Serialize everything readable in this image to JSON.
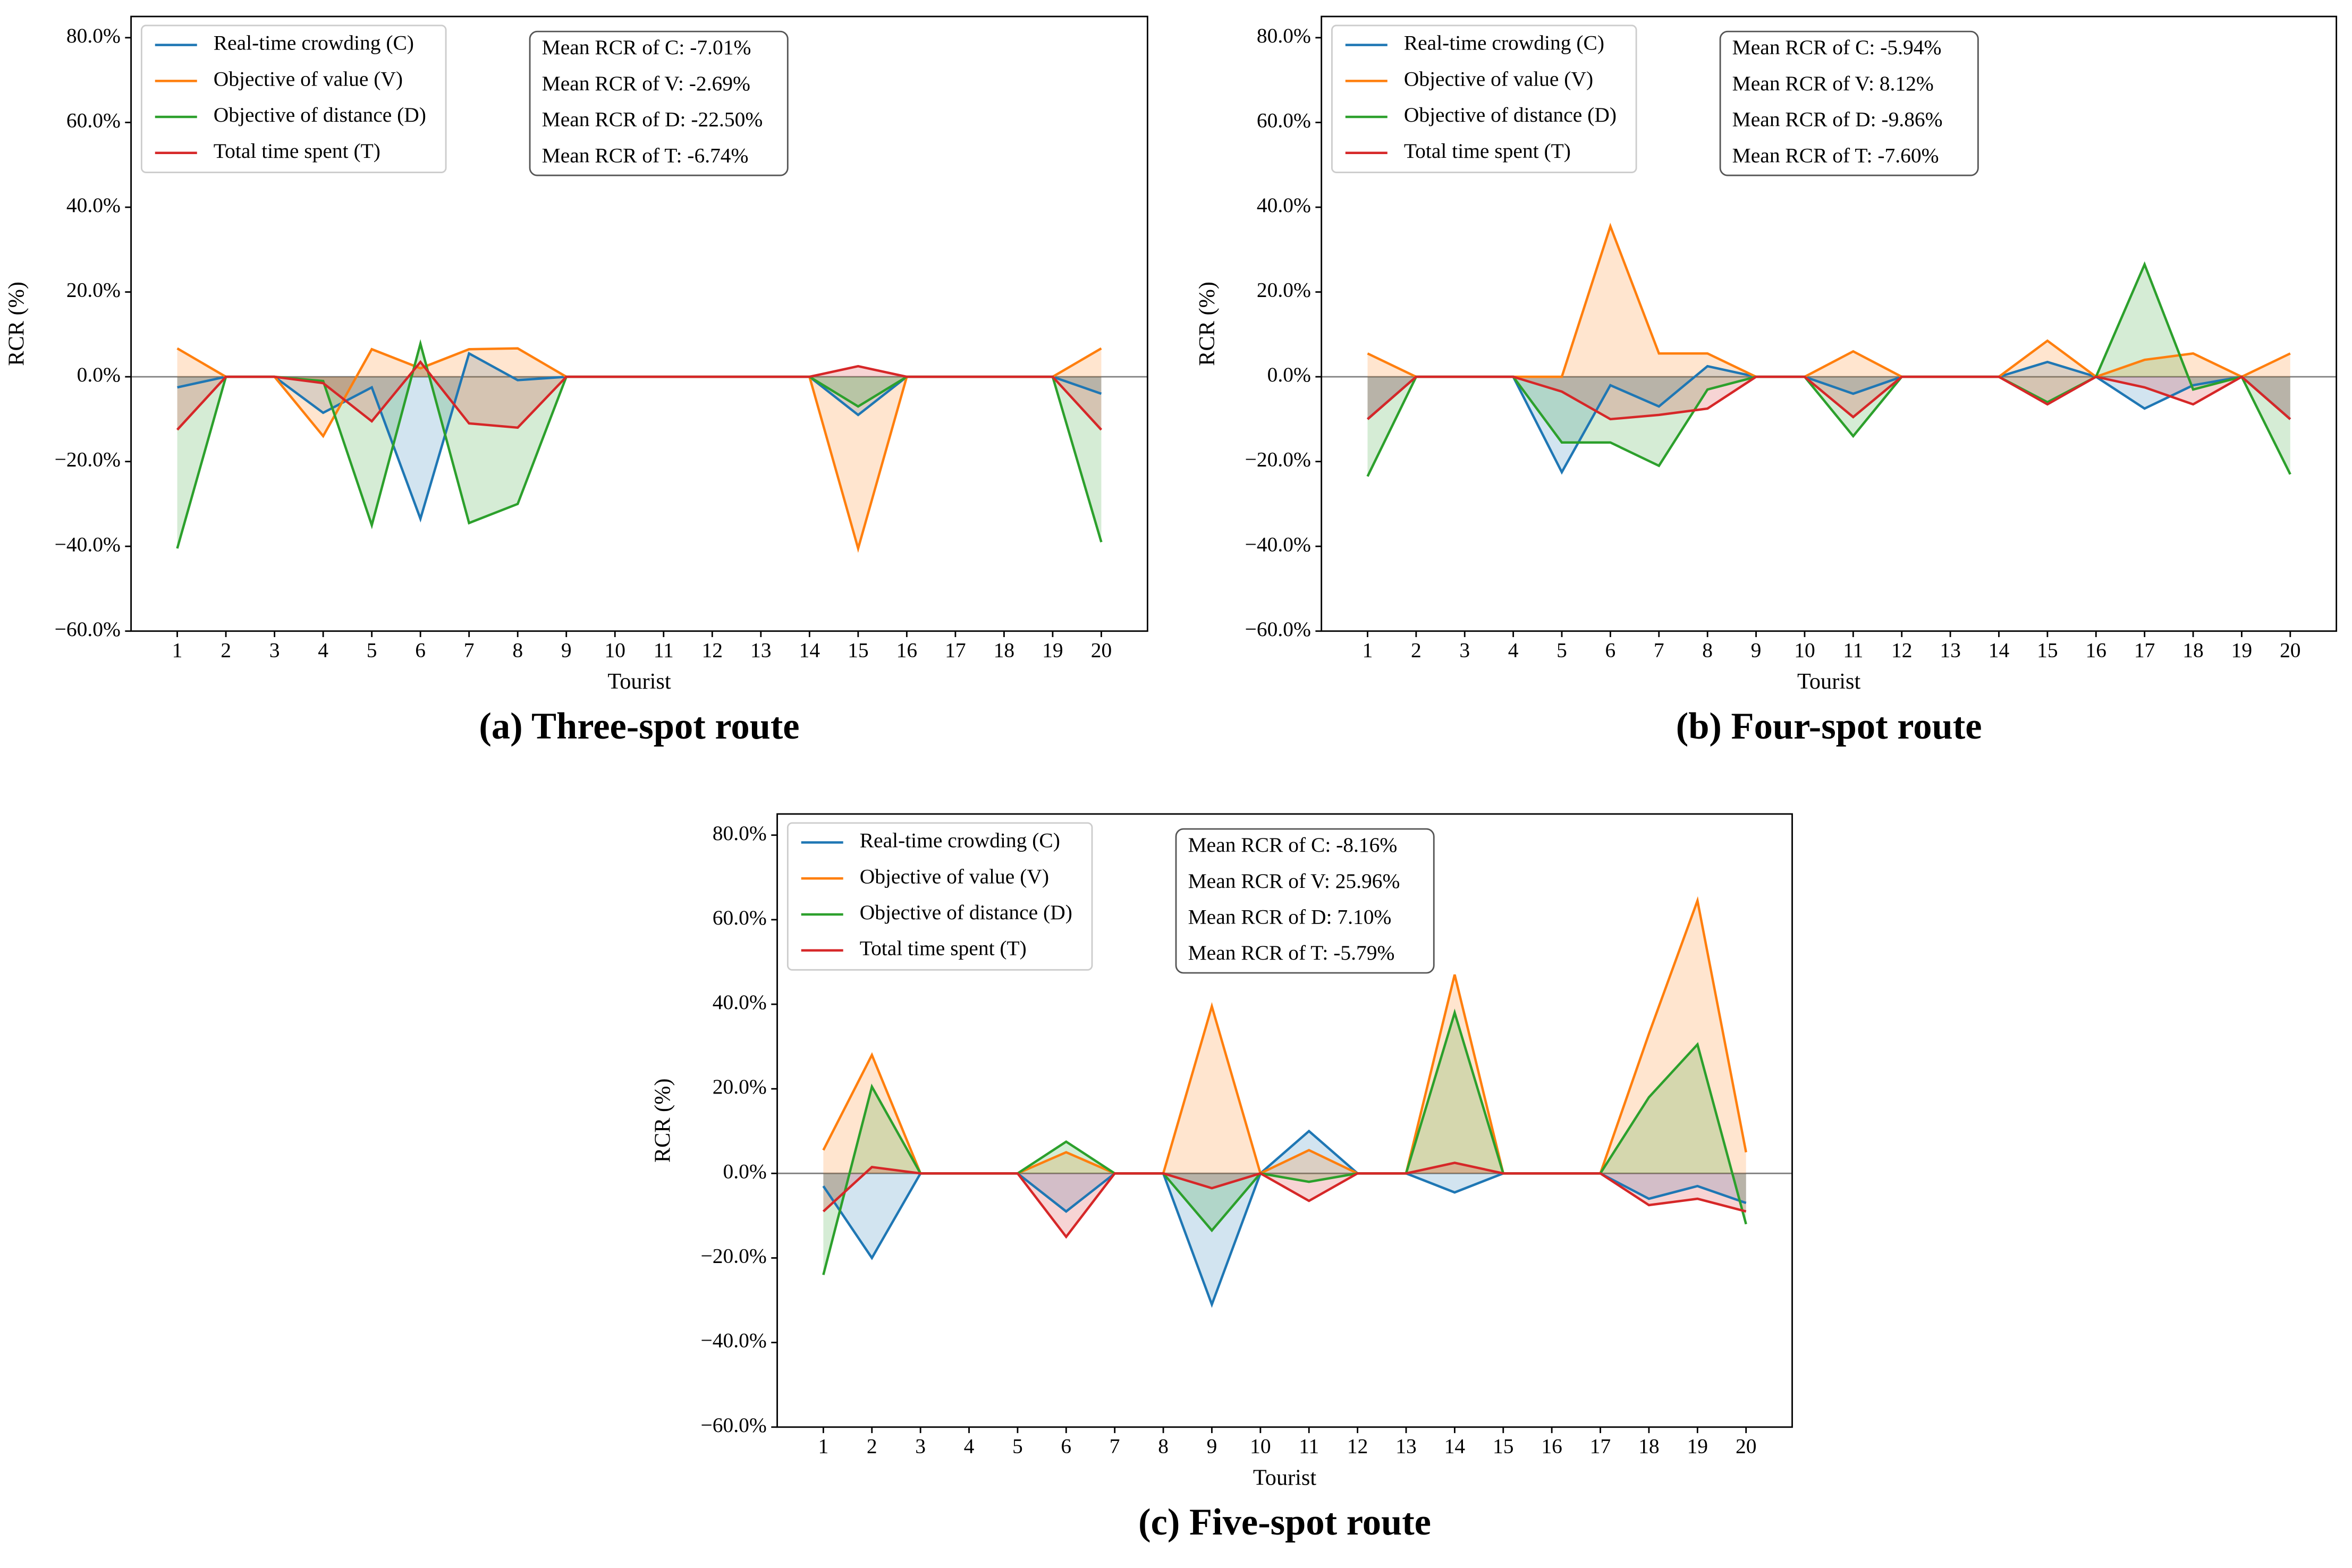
{
  "chart_data": [
    {
      "type": "line",
      "title": "(a) Three-spot route",
      "xlabel": "Tourist",
      "ylabel": "RCR (%)",
      "categories": [
        "1",
        "2",
        "3",
        "4",
        "5",
        "6",
        "7",
        "8",
        "9",
        "10",
        "11",
        "12",
        "13",
        "14",
        "15",
        "16",
        "17",
        "18",
        "19",
        "20"
      ],
      "series": [
        {
          "name": "Real-time crowding (C)",
          "color": "#1f77b4",
          "values": [
            -2.5,
            0,
            0,
            -8.5,
            -2.5,
            -33.5,
            5.5,
            -0.8,
            0,
            0,
            0,
            0,
            0,
            0,
            -9,
            0,
            0,
            0,
            0,
            -4
          ]
        },
        {
          "name": "Objective of value (V)",
          "color": "#ff7f0e",
          "values": [
            6.7,
            0,
            0,
            -14,
            6.5,
            2,
            6.5,
            6.7,
            0,
            0,
            0,
            0,
            0,
            0,
            -40.5,
            0,
            0,
            0,
            0,
            6.7
          ]
        },
        {
          "name": "Objective of distance (D)",
          "color": "#2ca02c",
          "values": [
            -40.5,
            0,
            0,
            -1,
            -35,
            7.8,
            -34.5,
            -30,
            0,
            0,
            0,
            0,
            0,
            0,
            -7,
            0,
            0,
            0,
            0,
            -39
          ]
        },
        {
          "name": "Total time spent (T)",
          "color": "#d62728",
          "values": [
            -12.5,
            0,
            0,
            -1.5,
            -10.5,
            3.5,
            -11,
            -12,
            0,
            0,
            0,
            0,
            0,
            0,
            2.5,
            0,
            0,
            0,
            0,
            -12.5
          ]
        }
      ],
      "annotations": [
        "Mean RCR of C: -7.01%",
        "Mean RCR of V: -2.69%",
        "Mean RCR of D: -22.50%",
        "Mean RCR of T: -6.74%"
      ],
      "ylim": [
        -60,
        85
      ],
      "yticks": [
        {
          "value": -60,
          "label": "−60.0%"
        },
        {
          "value": -40,
          "label": "−40.0%"
        },
        {
          "value": -20,
          "label": "−20.0%"
        },
        {
          "value": 0,
          "label": "0.0%"
        },
        {
          "value": 20,
          "label": "20.0%"
        },
        {
          "value": 40,
          "label": "40.0%"
        },
        {
          "value": 60,
          "label": "60.0%"
        },
        {
          "value": 80,
          "label": "80.0%"
        }
      ],
      "legend": "upper left",
      "fill_to_zero": true
    },
    {
      "type": "line",
      "title": "(b) Four-spot route",
      "xlabel": "Tourist",
      "ylabel": "RCR (%)",
      "categories": [
        "1",
        "2",
        "3",
        "4",
        "5",
        "6",
        "7",
        "8",
        "9",
        "10",
        "11",
        "12",
        "13",
        "14",
        "15",
        "16",
        "17",
        "18",
        "19",
        "20"
      ],
      "series": [
        {
          "name": "Real-time crowding (C)",
          "color": "#1f77b4",
          "values": [
            -10,
            0,
            0,
            0,
            -22.5,
            -2,
            -7,
            2.5,
            0,
            0,
            -4,
            0,
            0,
            0,
            3.5,
            0,
            -7.5,
            -2,
            0,
            -10
          ]
        },
        {
          "name": "Objective of value (V)",
          "color": "#ff7f0e",
          "values": [
            5.5,
            0,
            0,
            0,
            0,
            35.5,
            5.5,
            5.5,
            0,
            0,
            6,
            0,
            0,
            0,
            8.5,
            0,
            4,
            5.5,
            0,
            5.5
          ]
        },
        {
          "name": "Objective of distance (D)",
          "color": "#2ca02c",
          "values": [
            -23.5,
            0,
            0,
            0,
            -15.5,
            -15.5,
            -21,
            -3,
            0,
            0,
            -14,
            0,
            0,
            0,
            -6,
            0,
            26.5,
            -3,
            0,
            -23
          ]
        },
        {
          "name": "Total time spent (T)",
          "color": "#d62728",
          "values": [
            -10,
            0,
            0,
            0,
            -3.5,
            -10,
            -9,
            -7.5,
            0,
            0,
            -9.5,
            0,
            0,
            0,
            -6.5,
            0,
            -2.5,
            -6.5,
            0,
            -10
          ]
        }
      ],
      "annotations": [
        "Mean RCR of C: -5.94%",
        "Mean RCR of V: 8.12%",
        "Mean RCR of D: -9.86%",
        "Mean RCR of T: -7.60%"
      ],
      "ylim": [
        -60,
        85
      ],
      "yticks": [
        {
          "value": -60,
          "label": "−60.0%"
        },
        {
          "value": -40,
          "label": "−40.0%"
        },
        {
          "value": -20,
          "label": "−20.0%"
        },
        {
          "value": 0,
          "label": "0.0%"
        },
        {
          "value": 20,
          "label": "20.0%"
        },
        {
          "value": 40,
          "label": "40.0%"
        },
        {
          "value": 60,
          "label": "60.0%"
        },
        {
          "value": 80,
          "label": "80.0%"
        }
      ],
      "legend": "upper left",
      "fill_to_zero": true
    },
    {
      "type": "line",
      "title": "(c) Five-spot route",
      "xlabel": "Tourist",
      "ylabel": "RCR (%)",
      "categories": [
        "1",
        "2",
        "3",
        "4",
        "5",
        "6",
        "7",
        "8",
        "9",
        "10",
        "11",
        "12",
        "13",
        "14",
        "15",
        "16",
        "17",
        "18",
        "19",
        "20"
      ],
      "series": [
        {
          "name": "Real-time crowding (C)",
          "color": "#1f77b4",
          "values": [
            -3,
            -20,
            0,
            0,
            0,
            -9,
            0,
            0,
            -31,
            0,
            10,
            0,
            0,
            -4.5,
            0,
            0,
            0,
            -6,
            -3,
            -7
          ]
        },
        {
          "name": "Objective of value (V)",
          "color": "#ff7f0e",
          "values": [
            5.5,
            28,
            0,
            0,
            0,
            5,
            0,
            0,
            39.5,
            0,
            5.5,
            0,
            0,
            47,
            0,
            0,
            0,
            33,
            64.5,
            5
          ]
        },
        {
          "name": "Objective of distance (D)",
          "color": "#2ca02c",
          "values": [
            -24,
            20.5,
            0,
            0,
            0,
            7.5,
            0,
            0,
            -13.5,
            0,
            -2,
            0,
            0,
            38,
            0,
            0,
            0,
            18,
            30.5,
            -12
          ]
        },
        {
          "name": "Total time spent (T)",
          "color": "#d62728",
          "values": [
            -9,
            1.5,
            0,
            0,
            0,
            -15,
            0,
            0,
            -3.5,
            0,
            -6.5,
            0,
            0,
            2.5,
            0,
            0,
            0,
            -7.5,
            -6,
            -9
          ]
        }
      ],
      "annotations": [
        "Mean RCR of C: -8.16%",
        "Mean RCR of V: 25.96%",
        "Mean RCR of D: 7.10%",
        "Mean RCR of T: -5.79%"
      ],
      "ylim": [
        -60,
        85
      ],
      "yticks": [
        {
          "value": -60,
          "label": "−60.0%"
        },
        {
          "value": -40,
          "label": "−40.0%"
        },
        {
          "value": -20,
          "label": "−20.0%"
        },
        {
          "value": 0,
          "label": "0.0%"
        },
        {
          "value": 20,
          "label": "20.0%"
        },
        {
          "value": 40,
          "label": "40.0%"
        },
        {
          "value": 60,
          "label": "60.0%"
        },
        {
          "value": 80,
          "label": "80.0%"
        }
      ],
      "legend": "upper left",
      "fill_to_zero": true
    }
  ]
}
